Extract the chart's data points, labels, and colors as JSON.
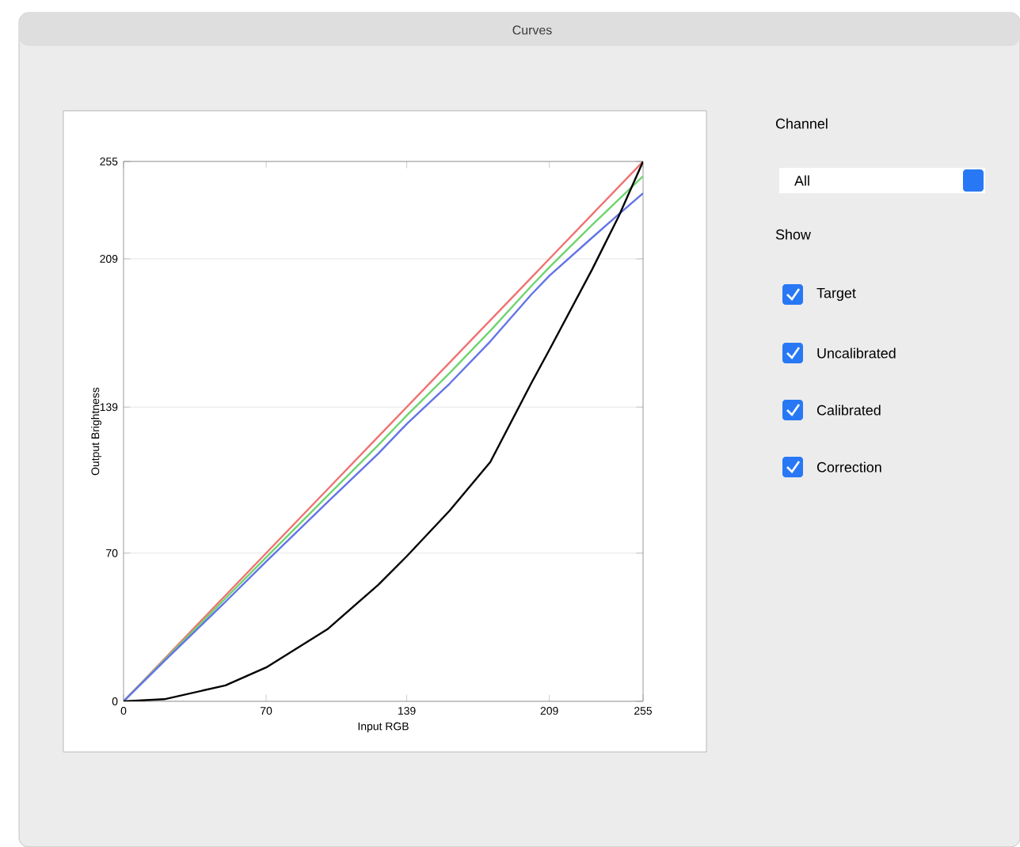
{
  "chart_data": {
    "type": "line",
    "title": "Curves",
    "xlabel": "Input RGB",
    "ylabel": "Output Brightness",
    "x": [
      0,
      20,
      50,
      70,
      100,
      125,
      139,
      160,
      180,
      200,
      209,
      230,
      243,
      255
    ],
    "series": [
      {
        "color": "#f07272",
        "values": [
          0,
          20,
          50,
          70,
          100,
          125,
          139,
          160,
          180,
          200,
          209,
          230,
          243,
          255
        ]
      },
      {
        "color": "#6fd46f",
        "values": [
          0,
          19.5,
          48.6,
          68,
          97,
          121,
          135,
          155,
          175,
          196,
          205,
          225,
          237,
          248
        ]
      },
      {
        "color": "#6474e6",
        "values": [
          0,
          19,
          47,
          66,
          94,
          117,
          131,
          150,
          170,
          192,
          201,
          219,
          230,
          240
        ]
      },
      {
        "color": "#000000",
        "values": [
          0,
          1,
          7.5,
          16,
          34,
          55,
          68.5,
          90,
          113,
          150,
          166,
          204,
          229,
          255
        ]
      }
    ],
    "xlim": [
      0,
      255
    ],
    "ylim": [
      0,
      255
    ],
    "xticks": [
      0,
      70,
      139,
      209,
      255
    ],
    "yticks": [
      0,
      70,
      139,
      209,
      255
    ],
    "grid": "y",
    "annotations": [
      "Channel",
      "All",
      "Show",
      "Target",
      "Uncalibrated",
      "Calibrated",
      "Correction"
    ]
  }
}
